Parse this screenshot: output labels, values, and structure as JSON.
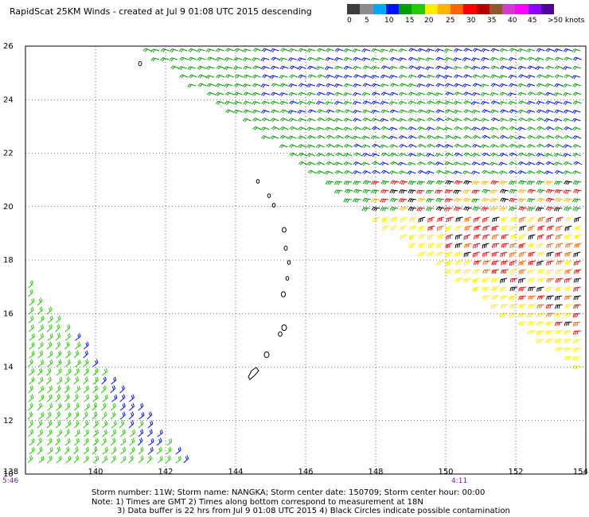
{
  "header": {
    "title": "RapidScat 25KM Winds - created at Jul  9 01:08 UTC 2015 descending"
  },
  "colorbar": {
    "labels": [
      "0",
      "5",
      "10",
      "15",
      "20",
      "25",
      "30",
      "35",
      "40",
      "45",
      ">50 knots"
    ],
    "colors": [
      "#3c3c3c",
      "#8c8c8c",
      "#00a8ff",
      "#0010ff",
      "#00a000",
      "#22cc00",
      "#ffee00",
      "#ffb400",
      "#ff6400",
      "#ff0000",
      "#b40000",
      "#8c5a2a",
      "#d23ad2",
      "#ff00ff",
      "#8c00ff",
      "#500096"
    ]
  },
  "map": {
    "lon_labels": [
      "138",
      "140",
      "142",
      "144",
      "146",
      "148",
      "150",
      "152",
      "154"
    ],
    "lat_labels": [
      "26",
      "24",
      "22",
      "20",
      "18",
      "16",
      "14",
      "12",
      "10"
    ],
    "lon_range": [
      138,
      154
    ],
    "lat_range": [
      10,
      26
    ]
  },
  "times": {
    "left": "5:46",
    "right": "4:11"
  },
  "footer": {
    "storm_line": "Storm number: 11W;  Storm name: NANGKA;  Storm center date: 150709;  Storm center hour: 00:00",
    "note_line_1": "Note: 1) Times are GMT  2) Times along bottom correspond to measurement at 18N",
    "note_line_2": "3) Data buffer is 22 hrs from Jul  9 01:08 UTC 2015  4) Black Circles indicate possible contamination"
  },
  "wind_colors": {
    "light": "#0010ff",
    "moderate": "#00a000",
    "fresh": "#22cc00",
    "strong": "#ffee00",
    "stronger": "#ffb400",
    "gale": "#ff6400",
    "storm": "#ff0000",
    "severe": "#000000"
  }
}
